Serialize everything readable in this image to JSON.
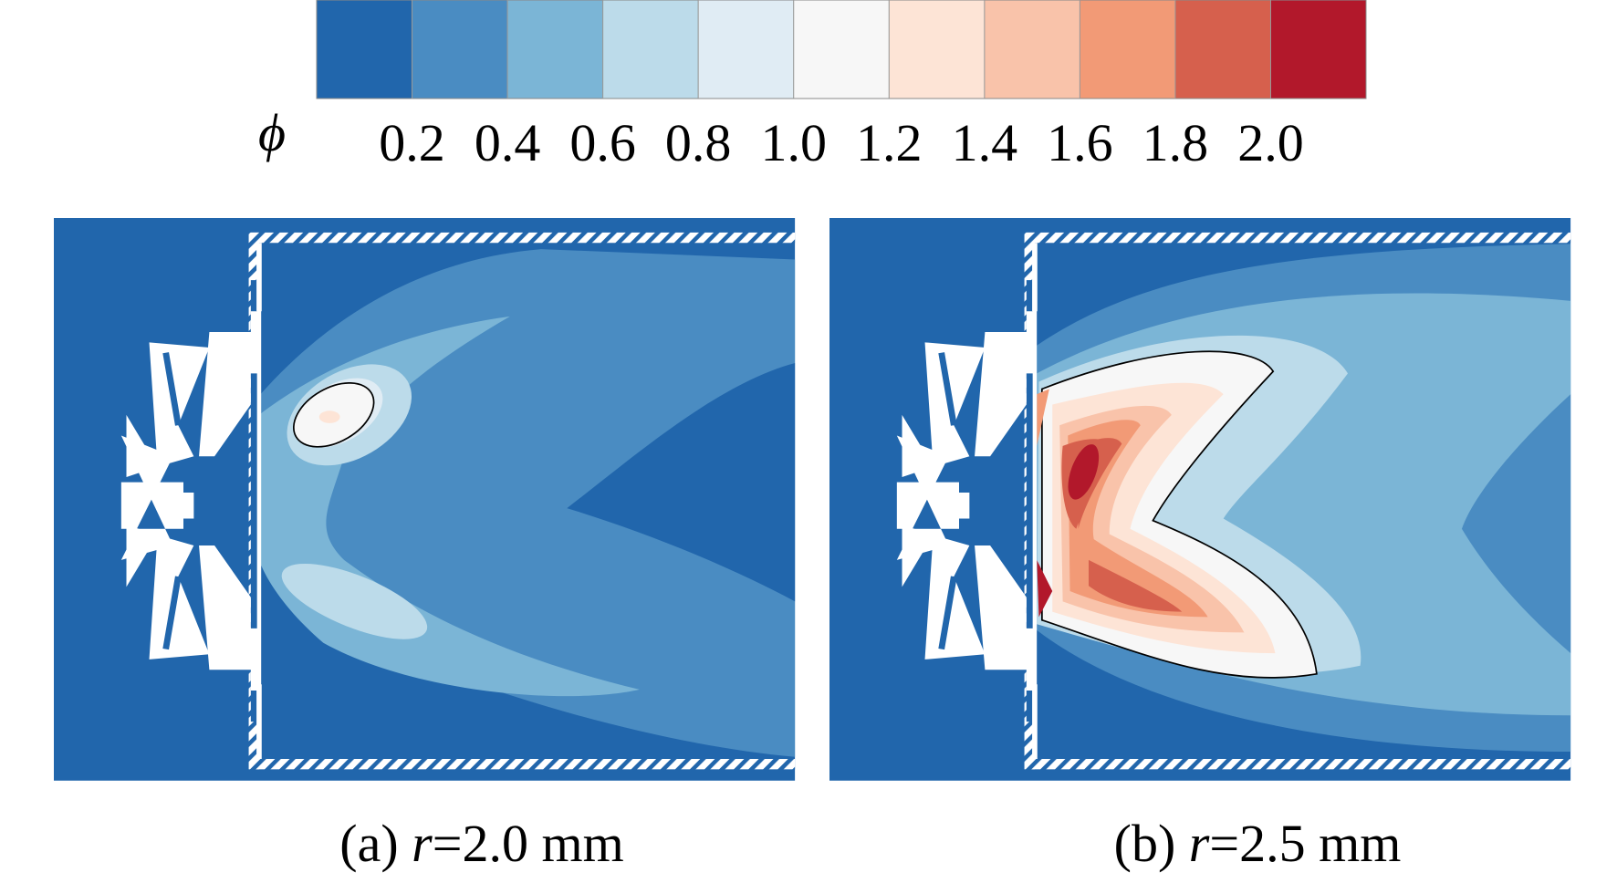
{
  "colorbar": {
    "symbol": "ϕ",
    "colors": [
      "#2166ac",
      "#4a8cc2",
      "#7bb5d6",
      "#bcdbea",
      "#e0ecf4",
      "#f7f7f7",
      "#fde4d6",
      "#f9c3aa",
      "#f29a76",
      "#d6604d",
      "#b2182b"
    ],
    "ticks": [
      0.2,
      0.4,
      0.6,
      0.8,
      {
        "value": 1.0,
        "label": "1.0"
      },
      1.2,
      1.4,
      1.6,
      1.8,
      {
        "value": 2.0,
        "label": "2.0"
      }
    ]
  },
  "panels": [
    {
      "caption": {
        "label": "(a)",
        "variable": "r",
        "value": "=2.0 mm"
      }
    },
    {
      "caption": {
        "label": "(b)",
        "variable": "r",
        "value": "=2.5 mm"
      }
    }
  ]
}
